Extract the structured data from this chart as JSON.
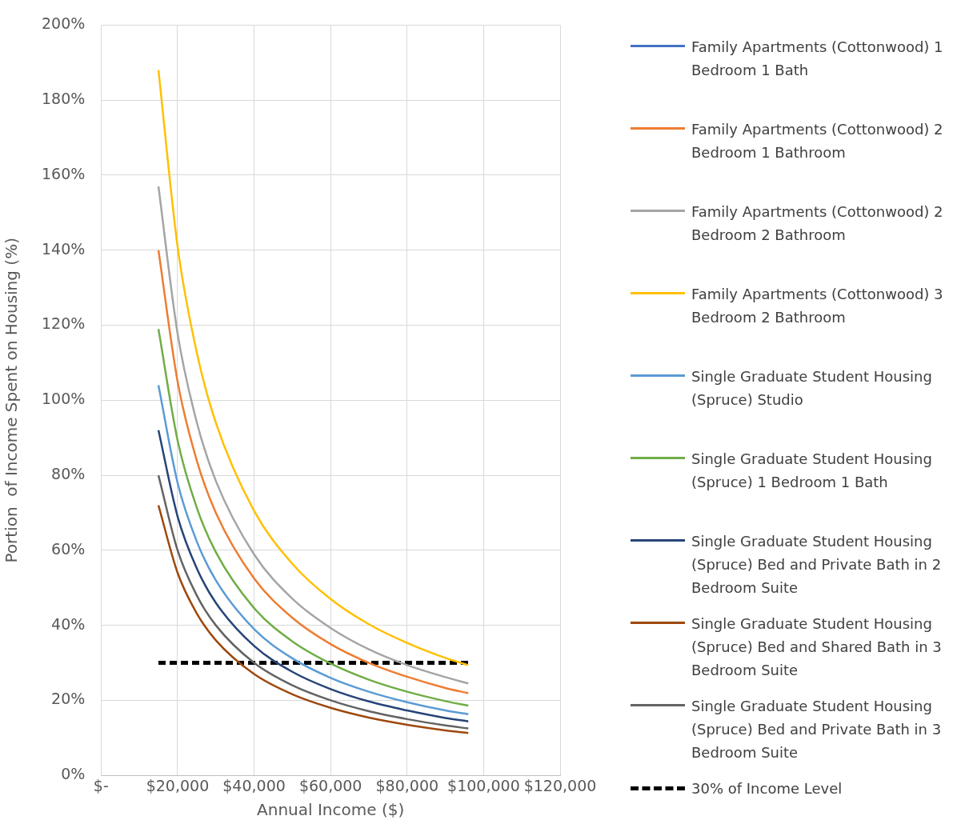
{
  "chart_data": {
    "type": "line",
    "xlabel": "Annual Income ($)",
    "ylabel": "Portion  of Income Spent on Housing (%)",
    "x": [
      15000,
      20000,
      25000,
      30000,
      40000,
      50000,
      60000,
      70000,
      80000,
      90000,
      96000
    ],
    "series": [
      {
        "name": "Family Apartments (Cottonwood) 1 Bedroom 1 Bath",
        "color": "#4472c4",
        "values": [
          null,
          null,
          null,
          null,
          null,
          null,
          null,
          null,
          null,
          null,
          null
        ]
      },
      {
        "name": "Family Apartments (Cottonwood) 2 Bedroom 1 Bathroom",
        "color": "#ed7d31",
        "values": [
          140,
          105,
          84,
          70,
          52.5,
          42,
          35,
          30,
          26.3,
          23.3,
          21.9
        ]
      },
      {
        "name": "Family Apartments (Cottonwood) 2 Bedroom 2 Bathroom",
        "color": "#a5a5a5",
        "values": [
          157,
          117.8,
          94.2,
          78.5,
          58.9,
          47.1,
          39.3,
          33.6,
          29.4,
          26.2,
          24.5
        ]
      },
      {
        "name": "Family Apartments (Cottonwood) 3 Bedroom 2 Bathroom",
        "color": "#ffc000",
        "values": [
          188,
          141,
          112.8,
          94,
          70.5,
          56.4,
          47,
          40.3,
          35.3,
          31.3,
          29.4
        ]
      },
      {
        "name": "Single Graduate Student Housing (Spruce) Studio",
        "color": "#5b9bd5",
        "values": [
          104,
          78,
          62.4,
          52,
          39,
          31.2,
          26,
          22.3,
          19.5,
          17.3,
          16.3
        ]
      },
      {
        "name": "Single Graduate Student Housing (Spruce) 1 Bedroom 1 Bath",
        "color": "#70ad47",
        "values": [
          119,
          89.3,
          71.4,
          59.5,
          44.6,
          35.7,
          29.8,
          25.5,
          22.3,
          19.8,
          18.6
        ]
      },
      {
        "name": "Single Graduate Student Housing (Spruce) Bed and Private Bath in 2 Bedroom Suite",
        "color": "#264478",
        "values": [
          92,
          69,
          55.2,
          46,
          34.5,
          27.6,
          23,
          19.7,
          17.3,
          15.3,
          14.4
        ]
      },
      {
        "name": "Single Graduate Student Housing (Spruce) Bed and Shared Bath in 3 Bedroom Suite",
        "color": "#9e480e",
        "values": [
          72,
          54,
          43.2,
          36,
          27,
          21.6,
          18,
          15.4,
          13.5,
          12,
          11.3
        ]
      },
      {
        "name": "Single Graduate Student Housing (Spruce) Bed and Private Bath in 3 Bedroom Suite",
        "color": "#636363",
        "values": [
          80,
          60,
          48,
          40,
          30,
          24,
          20,
          17.1,
          15,
          13.3,
          12.5
        ]
      },
      {
        "name": "30% of Income Level",
        "color": "#000000",
        "x": [
          15000,
          96000
        ],
        "values": [
          30,
          30
        ],
        "line_style": "dashed"
      }
    ],
    "xlim": [
      0,
      120000
    ],
    "xticks": [
      {
        "value": 0,
        "label": "$-"
      },
      {
        "value": 20000,
        "label": "$20,000"
      },
      {
        "value": 40000,
        "label": "$40,000"
      },
      {
        "value": 60000,
        "label": "$60,000"
      },
      {
        "value": 80000,
        "label": "$80,000"
      },
      {
        "value": 100000,
        "label": "$100,000"
      },
      {
        "value": 120000,
        "label": "$120,000"
      }
    ],
    "ylim": [
      0,
      200
    ],
    "yticks": [
      {
        "value": 0,
        "label": "0%"
      },
      {
        "value": 20,
        "label": "20%"
      },
      {
        "value": 40,
        "label": "40%"
      },
      {
        "value": 60,
        "label": "60%"
      },
      {
        "value": 80,
        "label": "80%"
      },
      {
        "value": 100,
        "label": "100%"
      },
      {
        "value": 120,
        "label": "120%"
      },
      {
        "value": 140,
        "label": "140%"
      },
      {
        "value": 160,
        "label": "160%"
      },
      {
        "value": 180,
        "label": "180%"
      },
      {
        "value": 200,
        "label": "200%"
      }
    ],
    "grid": true,
    "legend": "right",
    "marker": "none",
    "line_style": "solid"
  }
}
